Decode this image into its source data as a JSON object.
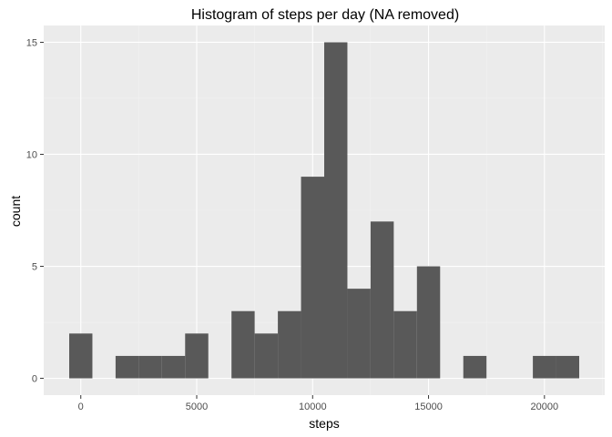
{
  "chart_data": {
    "type": "bar",
    "title": "Histogram of steps per day (NA removed)",
    "xlabel": "steps",
    "ylabel": "count",
    "bin_width": 1000,
    "bins": [
      {
        "start": -500,
        "end": 500,
        "count": 2
      },
      {
        "start": 500,
        "end": 1500,
        "count": 0
      },
      {
        "start": 1500,
        "end": 2500,
        "count": 1
      },
      {
        "start": 2500,
        "end": 3500,
        "count": 1
      },
      {
        "start": 3500,
        "end": 4500,
        "count": 1
      },
      {
        "start": 4500,
        "end": 5500,
        "count": 2
      },
      {
        "start": 5500,
        "end": 6500,
        "count": 0
      },
      {
        "start": 6500,
        "end": 7500,
        "count": 3
      },
      {
        "start": 7500,
        "end": 8500,
        "count": 2
      },
      {
        "start": 8500,
        "end": 9500,
        "count": 3
      },
      {
        "start": 9500,
        "end": 10500,
        "count": 9
      },
      {
        "start": 10500,
        "end": 11500,
        "count": 15
      },
      {
        "start": 11500,
        "end": 12500,
        "count": 4
      },
      {
        "start": 12500,
        "end": 13500,
        "count": 7
      },
      {
        "start": 13500,
        "end": 14500,
        "count": 3
      },
      {
        "start": 14500,
        "end": 15500,
        "count": 5
      },
      {
        "start": 15500,
        "end": 16500,
        "count": 0
      },
      {
        "start": 16500,
        "end": 17500,
        "count": 1
      },
      {
        "start": 17500,
        "end": 18500,
        "count": 0
      },
      {
        "start": 18500,
        "end": 19500,
        "count": 0
      },
      {
        "start": 19500,
        "end": 20500,
        "count": 1
      },
      {
        "start": 20500,
        "end": 21500,
        "count": 1
      }
    ],
    "xlim": [
      -1600,
      22600
    ],
    "ylim": [
      -0.75,
      15.75
    ],
    "x_ticks": [
      0,
      5000,
      10000,
      15000,
      20000
    ],
    "x_tick_labels": [
      "0",
      "5000",
      "10000",
      "15000",
      "20000"
    ],
    "y_ticks": [
      0,
      5,
      10,
      15
    ],
    "y_tick_labels": [
      "0",
      "5",
      "10",
      "15"
    ],
    "grid": true,
    "legend": "none",
    "colors": {
      "panel": "#ebebeb",
      "grid_major": "#ffffff",
      "grid_minor": "#f2f2f2",
      "bar": "#595959",
      "tick": "#333333"
    }
  }
}
